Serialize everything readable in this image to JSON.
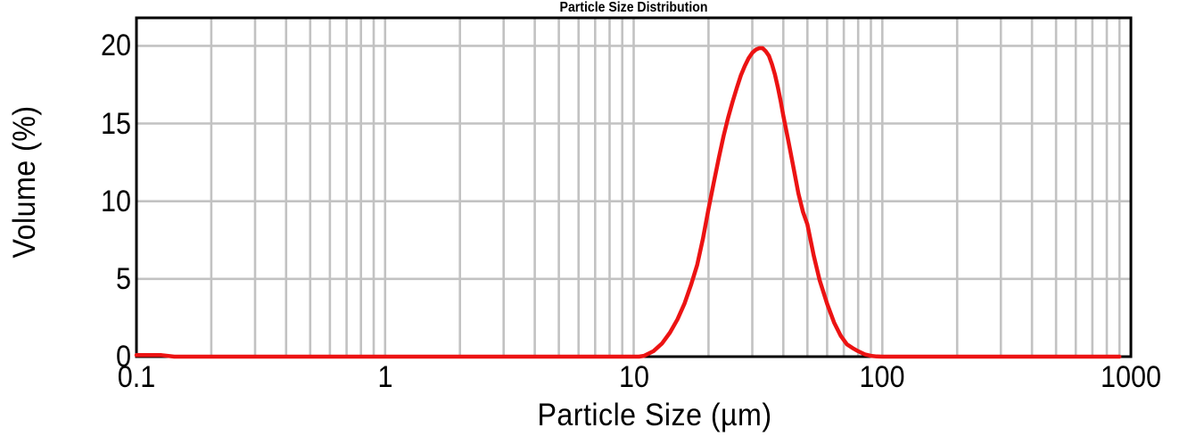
{
  "chart_data": {
    "type": "line",
    "title": "Particle Size Distribution",
    "xlabel": "Particle Size (µm)",
    "ylabel": "Volume (%)",
    "x_scale": "log",
    "y_scale": "linear",
    "xlim": [
      0.1,
      1000
    ],
    "ylim": [
      0,
      21.8
    ],
    "x_ticks": [
      0.1,
      1,
      10,
      100,
      1000
    ],
    "x_tick_labels": [
      "0.1",
      "1",
      "10",
      "100",
      "1000"
    ],
    "y_ticks": [
      0,
      5,
      10,
      15,
      20
    ],
    "y_tick_labels": [
      "0",
      "5",
      "10",
      "15",
      "20"
    ],
    "grid": true,
    "x_minor_gridlines": true,
    "y_minor_gridlines": false,
    "legend": "none",
    "colors": {
      "line": "#EC1313",
      "grid": "#C2C2C2",
      "axis": "#000000",
      "background": "#FFFFFF",
      "text": "#000000"
    },
    "series": [
      {
        "name": "Volume (%)",
        "points": [
          [
            0.1,
            0.1
          ],
          [
            0.126,
            0.1
          ],
          [
            0.142,
            0.0
          ],
          [
            0.2,
            0
          ],
          [
            0.5,
            0
          ],
          [
            1.0,
            0
          ],
          [
            2.0,
            0
          ],
          [
            5.0,
            0
          ],
          [
            8.0,
            0
          ],
          [
            10.5,
            0
          ],
          [
            11.0,
            0.05
          ],
          [
            12.0,
            0.35
          ],
          [
            13.0,
            0.85
          ],
          [
            14.0,
            1.55
          ],
          [
            15.0,
            2.4
          ],
          [
            16.0,
            3.4
          ],
          [
            17.0,
            4.6
          ],
          [
            18.0,
            5.9
          ],
          [
            19.0,
            7.6
          ],
          [
            20.0,
            9.5
          ],
          [
            21.0,
            11.2
          ],
          [
            22.0,
            12.8
          ],
          [
            23.0,
            14.2
          ],
          [
            24.0,
            15.4
          ],
          [
            25.0,
            16.4
          ],
          [
            26.0,
            17.3
          ],
          [
            27.0,
            18.1
          ],
          [
            28.0,
            18.7
          ],
          [
            29.0,
            19.2
          ],
          [
            30.0,
            19.55
          ],
          [
            31.0,
            19.75
          ],
          [
            32.0,
            19.85
          ],
          [
            33.0,
            19.85
          ],
          [
            34.0,
            19.65
          ],
          [
            35.0,
            19.35
          ],
          [
            36.0,
            18.8
          ],
          [
            37.0,
            18.15
          ],
          [
            38.0,
            17.35
          ],
          [
            39.0,
            16.45
          ],
          [
            40.0,
            15.5
          ],
          [
            42.0,
            13.8
          ],
          [
            44.0,
            12.1
          ],
          [
            46.0,
            10.5
          ],
          [
            48.0,
            9.3
          ],
          [
            50.0,
            8.5
          ],
          [
            53.0,
            6.5
          ],
          [
            56.0,
            4.9
          ],
          [
            60.0,
            3.4
          ],
          [
            64.0,
            2.2
          ],
          [
            68.0,
            1.35
          ],
          [
            72.0,
            0.8
          ],
          [
            76.0,
            0.55
          ],
          [
            80.0,
            0.35
          ],
          [
            85.0,
            0.15
          ],
          [
            90.0,
            0.05
          ],
          [
            95.0,
            0.01
          ],
          [
            100.0,
            0
          ],
          [
            150.0,
            0
          ],
          [
            300.0,
            0
          ],
          [
            600.0,
            0
          ],
          [
            900.0,
            0
          ]
        ]
      }
    ]
  }
}
